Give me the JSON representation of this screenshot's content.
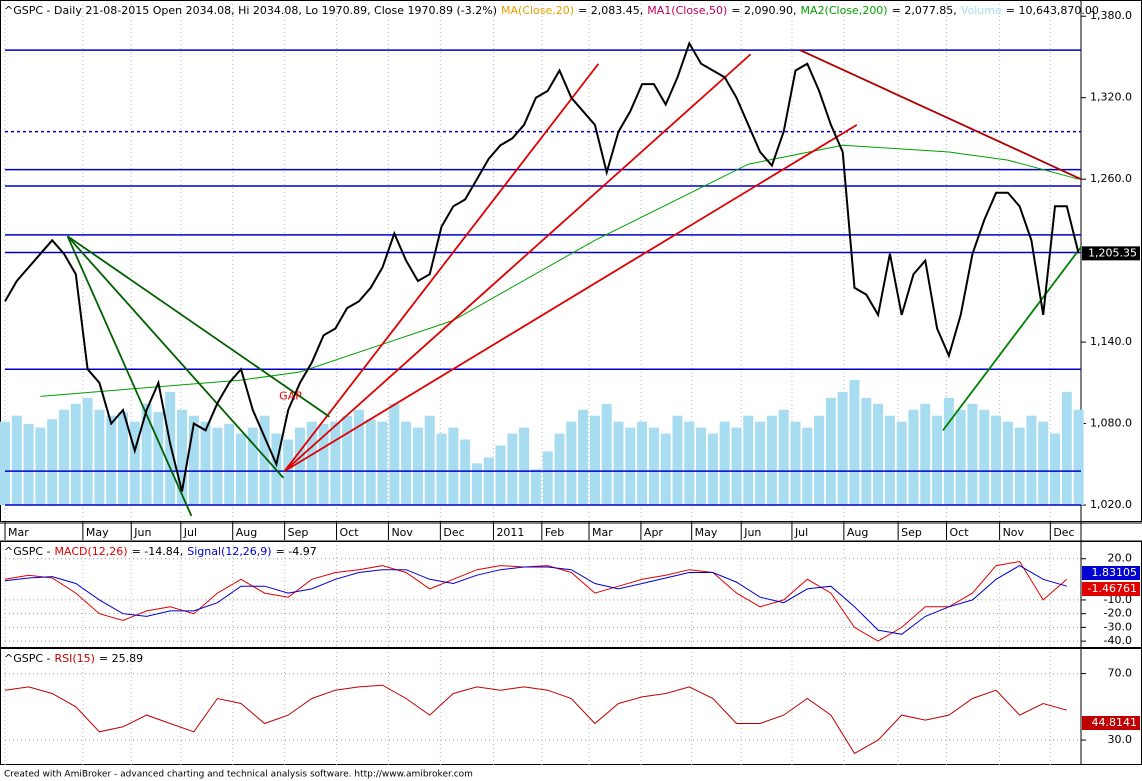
{
  "chart_data": [
    {
      "type": "line",
      "title": "^GSPC - Daily 21-08-2015 Open 2034.08, Hi 2034.08, Lo 1970.89, Close 1970.89 (-3.2%)",
      "legend": [
        {
          "name": "MA(Close,20)",
          "color": "#e8a000",
          "reading": "= 2,083.45,"
        },
        {
          "name": "MA1(Close,50)",
          "color": "#c0005a",
          "reading": "= 2,090.90,"
        },
        {
          "name": "MA2(Close,200)",
          "color": "#00a000",
          "reading": "= 2,077.85,"
        },
        {
          "name": "Volume",
          "color": "#a8dcf0",
          "reading": "= 10,643,870.00"
        }
      ],
      "xlim": [
        0,
        91.2
      ],
      "xticks": [
        {
          "value": 0,
          "label": "Mar"
        },
        {
          "value": 6.6,
          "label": "May"
        },
        {
          "value": 10.7,
          "label": "Jun"
        },
        {
          "value": 14.9,
          "label": "Jul"
        },
        {
          "value": 19.3,
          "label": "Aug"
        },
        {
          "value": 23.7,
          "label": "Sep"
        },
        {
          "value": 28.1,
          "label": "Oct"
        },
        {
          "value": 32.5,
          "label": "Nov"
        },
        {
          "value": 36.9,
          "label": "Dec"
        },
        {
          "value": 41.4,
          "label": "2011"
        },
        {
          "value": 45.5,
          "label": "Feb"
        },
        {
          "value": 49.5,
          "label": "Mar"
        },
        {
          "value": 53.9,
          "label": "Apr"
        },
        {
          "value": 58.2,
          "label": "May"
        },
        {
          "value": 62.4,
          "label": "Jun"
        },
        {
          "value": 66.7,
          "label": "Jul"
        },
        {
          "value": 71.1,
          "label": "Aug"
        },
        {
          "value": 75.7,
          "label": "Sep"
        },
        {
          "value": 79.8,
          "label": "Oct"
        },
        {
          "value": 84.3,
          "label": "Nov"
        },
        {
          "value": 88.6,
          "label": "Dec"
        }
      ],
      "ylim": [
        1007.5,
        1389
      ],
      "yticks": [
        {
          "value": 1020,
          "label": "1,020.0"
        },
        {
          "value": 1080,
          "label": "1,080.0"
        },
        {
          "value": 1140,
          "label": "1,140.0"
        },
        {
          "value": 1260,
          "label": "1,260.0"
        },
        {
          "value": 1320,
          "label": "1,320.0"
        },
        {
          "value": 1380,
          "label": "1,380.0"
        }
      ],
      "grid": true,
      "color": "#000000",
      "values": [
        1170,
        1185,
        1195,
        1205,
        1215,
        1205,
        1190,
        1120,
        1110,
        1080,
        1090,
        1060,
        1090,
        1110,
        1065,
        1030,
        1080,
        1075,
        1095,
        1110,
        1120,
        1090,
        1070,
        1050,
        1090,
        1110,
        1125,
        1145,
        1150,
        1165,
        1170,
        1180,
        1195,
        1220,
        1200,
        1185,
        1190,
        1225,
        1240,
        1245,
        1260,
        1275,
        1285,
        1290,
        1300,
        1320,
        1325,
        1340,
        1320,
        1310,
        1300,
        1265,
        1295,
        1310,
        1330,
        1330,
        1315,
        1335,
        1360,
        1345,
        1340,
        1335,
        1320,
        1300,
        1280,
        1270,
        1295,
        1340,
        1345,
        1325,
        1300,
        1280,
        1180,
        1175,
        1160,
        1205,
        1160,
        1190,
        1200,
        1150,
        1130,
        1160,
        1205,
        1230,
        1250,
        1250,
        1240,
        1215,
        1160,
        1240,
        1240,
        1205.35
      ],
      "last_value_label": "1,205.35",
      "volume": {
        "color": "#a8dcf0",
        "values": [
          7000000,
          7500000,
          6800000,
          6500000,
          7200000,
          8000000,
          8500000,
          9000000,
          8000000,
          7500000,
          7800000,
          7000000,
          8500000,
          7800000,
          9500000,
          8000000,
          7500000,
          7000000,
          6500000,
          6800000,
          6000000,
          6500000,
          7500000,
          6000000,
          5500000,
          6500000,
          7000000,
          6800000,
          7000000,
          7500000,
          8000000,
          7200000,
          7000000,
          8500000,
          7000000,
          6500000,
          7500000,
          6000000,
          6500000,
          5500000,
          3500000,
          4000000,
          5000000,
          6000000,
          6500000,
          3000000,
          4500000,
          6000000,
          7000000,
          8000000,
          7500000,
          8500000,
          7000000,
          6500000,
          7000000,
          6500000,
          6000000,
          7500000,
          7000000,
          6500000,
          6000000,
          7000000,
          6500000,
          7500000,
          7000000,
          7500000,
          8000000,
          7000000,
          6500000,
          7500000,
          9000000,
          9500000,
          10500000,
          9000000,
          8500000,
          7500000,
          7000000,
          8000000,
          8500000,
          7500000,
          9000000,
          8000000,
          8500000,
          8000000,
          7500000,
          7000000,
          6500000,
          7500000,
          7000000,
          6000000,
          9500000,
          8000000
        ]
      },
      "ma200": {
        "color": "#00a000",
        "x": [
          3,
          10,
          20,
          25,
          38,
          50,
          63,
          71,
          80,
          85,
          91
        ],
        "values": [
          1100,
          1105,
          1112,
          1118,
          1156,
          1215,
          1271,
          1285,
          1280,
          1274,
          1260
        ]
      },
      "hlines": {
        "color": "#0000c8",
        "values": [
          1355,
          1295,
          1267,
          1255,
          1219,
          1206,
          1120,
          1045,
          1020
        ],
        "dashed": [
          false,
          true,
          false,
          false,
          false,
          false,
          false,
          false,
          false
        ]
      },
      "trendlines": [
        {
          "color": "#e00000",
          "points": [
            23.7,
            1045,
            50.3,
            1345
          ]
        },
        {
          "color": "#e00000",
          "points": [
            23.7,
            1045,
            63.2,
            1352
          ]
        },
        {
          "color": "#e00000",
          "points": [
            23.7,
            1045,
            72.2,
            1300
          ]
        },
        {
          "color": "#006000",
          "points": [
            5.3,
            1218,
            23.6,
            1040
          ]
        },
        {
          "color": "#006000",
          "points": [
            5.3,
            1218,
            27.5,
            1085
          ]
        },
        {
          "color": "#006000",
          "points": [
            5.3,
            1218,
            15.8,
            1012
          ]
        },
        {
          "color": "#b00000",
          "points": [
            67.4,
            1355,
            91.2,
            1260
          ]
        },
        {
          "color": "#008000",
          "points": [
            79.5,
            1075,
            91.2,
            1210
          ]
        }
      ],
      "annotation": {
        "text": "GAP",
        "color": "#e00000",
        "x": 24.2,
        "y": 1100
      }
    },
    {
      "type": "line",
      "title": "^GSPC -",
      "xlim": [
        0,
        91.2
      ],
      "ylim": [
        -45,
        30
      ],
      "yticks": [
        {
          "value": 20,
          "label": "20.0"
        },
        {
          "value": -10,
          "label": "-10.0"
        },
        {
          "value": -20,
          "label": "-20.0"
        },
        {
          "value": -30,
          "label": "-30.0"
        },
        {
          "value": -40,
          "label": "-40.0"
        }
      ],
      "x": [
        0,
        2,
        4,
        6,
        8,
        10,
        12,
        14,
        16,
        18,
        20,
        22,
        24,
        26,
        28,
        30,
        32,
        34,
        36,
        38,
        40,
        42,
        44,
        46,
        48,
        50,
        52,
        54,
        56,
        58,
        60,
        62,
        64,
        66,
        68,
        70,
        72,
        74,
        76,
        78,
        80,
        82,
        84,
        86,
        88,
        90
      ],
      "series": [
        {
          "name": "MACD(12,26)",
          "color": "#e00000",
          "reading": "= -14.84,",
          "tag": "-1.46761",
          "values": [
            5,
            8,
            6,
            -5,
            -20,
            -25,
            -18,
            -15,
            -20,
            -5,
            5,
            -5,
            -8,
            5,
            10,
            12,
            15,
            10,
            -2,
            5,
            12,
            15,
            14,
            15,
            10,
            -5,
            0,
            5,
            8,
            12,
            10,
            -5,
            -15,
            -10,
            5,
            -5,
            -30,
            -40,
            -30,
            -15,
            -15,
            -5,
            15,
            18,
            -10,
            5
          ]
        },
        {
          "name": "Signal(12,26,9)",
          "color": "#0000d0",
          "reading": "= -4.97",
          "tag": "1.83105",
          "values": [
            4,
            6,
            7,
            2,
            -10,
            -20,
            -22,
            -18,
            -18,
            -12,
            0,
            0,
            -5,
            -2,
            5,
            10,
            12,
            12,
            5,
            2,
            8,
            12,
            14,
            14,
            12,
            2,
            -2,
            2,
            6,
            10,
            10,
            3,
            -8,
            -12,
            -2,
            0,
            -15,
            -32,
            -35,
            -22,
            -15,
            -10,
            5,
            15,
            5,
            0
          ]
        }
      ]
    },
    {
      "type": "line",
      "title": "^GSPC -",
      "xlim": [
        0,
        91.2
      ],
      "ylim": [
        15,
        83
      ],
      "yticks": [
        {
          "value": 70,
          "label": "70.0"
        },
        {
          "value": 30,
          "label": "30.0"
        }
      ],
      "x": [
        0,
        2,
        4,
        6,
        8,
        10,
        12,
        14,
        16,
        18,
        20,
        22,
        24,
        26,
        28,
        30,
        32,
        34,
        36,
        38,
        40,
        42,
        44,
        46,
        48,
        50,
        52,
        54,
        56,
        58,
        60,
        62,
        64,
        66,
        68,
        70,
        72,
        74,
        76,
        78,
        80,
        82,
        84,
        86,
        88,
        90
      ],
      "series": [
        {
          "name": "RSI(15)",
          "color": "#c00000",
          "reading": "= 25.89",
          "tag": "44.8141",
          "values": [
            60,
            62,
            58,
            50,
            35,
            38,
            45,
            40,
            35,
            55,
            52,
            40,
            45,
            55,
            60,
            62,
            63,
            55,
            45,
            58,
            62,
            60,
            62,
            60,
            55,
            40,
            52,
            56,
            58,
            62,
            55,
            40,
            40,
            45,
            55,
            45,
            22,
            30,
            45,
            42,
            45,
            55,
            60,
            45,
            52,
            48
          ]
        }
      ]
    }
  ],
  "footer": "Created with AmiBroker - advanced charting and technical analysis software. http://www.amibroker.com"
}
